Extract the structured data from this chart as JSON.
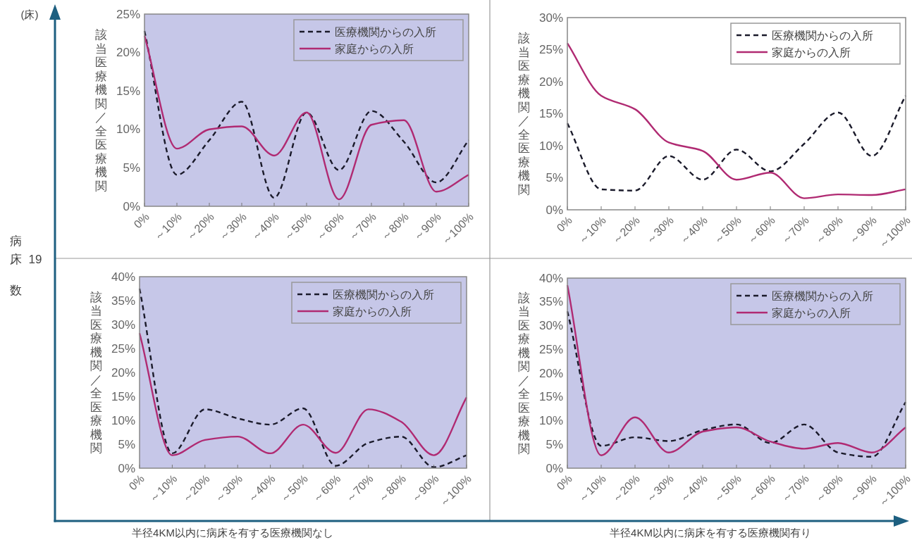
{
  "chart_data": [
    {
      "type": "line",
      "ylabel": "該当医療機関／全医療機関",
      "categories": [
        "0%",
        "～10%",
        "～20%",
        "～30%",
        "～40%",
        "～50%",
        "～60%",
        "～70%",
        "～80%",
        "～90%",
        "～100%"
      ],
      "series": [
        {
          "name": "医療機関からの入所",
          "color": "#1a1a2a",
          "line_style": "dashed",
          "values": [
            22.8,
            4.1,
            8.6,
            13.6,
            1.1,
            12.2,
            4.7,
            12.4,
            8.4,
            3.1,
            8.6
          ]
        },
        {
          "name": "家庭からの入所",
          "color": "#b02a72",
          "line_style": "solid",
          "values": [
            22.2,
            7.5,
            10.0,
            10.4,
            6.6,
            12.2,
            0.9,
            10.6,
            11.2,
            1.9,
            4.1
          ]
        }
      ],
      "ylim": [
        0,
        25
      ],
      "yticks": [
        {
          "value": 0,
          "label": "0%"
        },
        {
          "value": 5,
          "label": "5%"
        },
        {
          "value": 10,
          "label": "10%"
        },
        {
          "value": 15,
          "label": "15%"
        },
        {
          "value": 20,
          "label": "20%"
        },
        {
          "value": 25,
          "label": "25%"
        }
      ],
      "legend": "top right"
    },
    {
      "type": "line",
      "ylabel": "該当医療機関／全医療機関",
      "categories": [
        "0%",
        "～10%",
        "～20%",
        "～30%",
        "～40%",
        "～50%",
        "～60%",
        "～70%",
        "～80%",
        "～90%",
        "～100%"
      ],
      "series": [
        {
          "name": "医療機関からの入所",
          "color": "#1a1a2a",
          "line_style": "dashed",
          "values": [
            13.5,
            3.2,
            3.0,
            8.4,
            4.7,
            9.4,
            6.0,
            10.3,
            15.2,
            8.4,
            17.8
          ]
        },
        {
          "name": "家庭からの入所",
          "color": "#b02a72",
          "line_style": "solid",
          "values": [
            26.0,
            17.8,
            15.7,
            10.5,
            9.2,
            4.7,
            5.8,
            1.8,
            2.4,
            2.3,
            3.2
          ]
        }
      ],
      "ylim": [
        0,
        30
      ],
      "yticks": [
        {
          "value": 0,
          "label": "0%"
        },
        {
          "value": 5,
          "label": "5%"
        },
        {
          "value": 10,
          "label": "10%"
        },
        {
          "value": 15,
          "label": "15%"
        },
        {
          "value": 20,
          "label": "20%"
        },
        {
          "value": 25,
          "label": "25%"
        },
        {
          "value": 30,
          "label": "30%"
        }
      ],
      "legend": "top right"
    },
    {
      "type": "line",
      "ylabel": "該当医療機関／全医療機関",
      "categories": [
        "0%",
        "～10%",
        "～20%",
        "～30%",
        "～40%",
        "～50%",
        "～60%",
        "～70%",
        "～80%",
        "～90%",
        "～100%"
      ],
      "series": [
        {
          "name": "医療機関からの入所",
          "color": "#1a1a2a",
          "line_style": "dashed",
          "values": [
            37.5,
            3.1,
            12.3,
            10.4,
            9.1,
            12.5,
            0.5,
            5.3,
            6.6,
            0.2,
            2.7
          ]
        },
        {
          "name": "家庭からの入所",
          "color": "#b02a72",
          "line_style": "solid",
          "values": [
            28.2,
            2.7,
            5.9,
            6.6,
            3.1,
            9.1,
            3.2,
            12.3,
            9.7,
            2.7,
            14.8
          ]
        }
      ],
      "ylim": [
        0,
        40
      ],
      "yticks": [
        {
          "value": 0,
          "label": "0%"
        },
        {
          "value": 5,
          "label": "5%"
        },
        {
          "value": 10,
          "label": "10%"
        },
        {
          "value": 15,
          "label": "15%"
        },
        {
          "value": 20,
          "label": "20%"
        },
        {
          "value": 25,
          "label": "25%"
        },
        {
          "value": 30,
          "label": "30%"
        },
        {
          "value": 35,
          "label": "35%"
        },
        {
          "value": 40,
          "label": "40%"
        }
      ],
      "legend": "top right"
    },
    {
      "type": "line",
      "ylabel": "該当医療機関／全医療機関",
      "categories": [
        "0%",
        "～10%",
        "～20%",
        "～30%",
        "～40%",
        "～50%",
        "～60%",
        "～70%",
        "～80%",
        "～90%",
        "～100%"
      ],
      "series": [
        {
          "name": "医療機関からの入所",
          "color": "#1a1a2a",
          "line_style": "dashed",
          "values": [
            33.0,
            4.7,
            6.5,
            5.7,
            8.0,
            9.2,
            5.3,
            9.2,
            3.3,
            2.4,
            13.9
          ]
        },
        {
          "name": "家庭からの入所",
          "color": "#b02a72",
          "line_style": "solid",
          "values": [
            38.5,
            2.7,
            10.7,
            3.3,
            7.7,
            8.6,
            5.6,
            4.1,
            5.3,
            3.3,
            8.6
          ]
        }
      ],
      "ylim": [
        0,
        40
      ],
      "yticks": [
        {
          "value": 0,
          "label": "0%"
        },
        {
          "value": 5,
          "label": "5%"
        },
        {
          "value": 10,
          "label": "10%"
        },
        {
          "value": 15,
          "label": "15%"
        },
        {
          "value": 20,
          "label": "20%"
        },
        {
          "value": 25,
          "label": "25%"
        },
        {
          "value": 30,
          "label": "30%"
        },
        {
          "value": 35,
          "label": "35%"
        },
        {
          "value": 40,
          "label": "40%"
        }
      ],
      "legend": "top right"
    },
    {
      "type": "other",
      "annotations": [
        "(床)",
        "病床数",
        "19",
        "半径4KM以内に病床を有する医療機関なし",
        "半径4KM以内に病床を有する医療機関有り"
      ]
    }
  ]
}
